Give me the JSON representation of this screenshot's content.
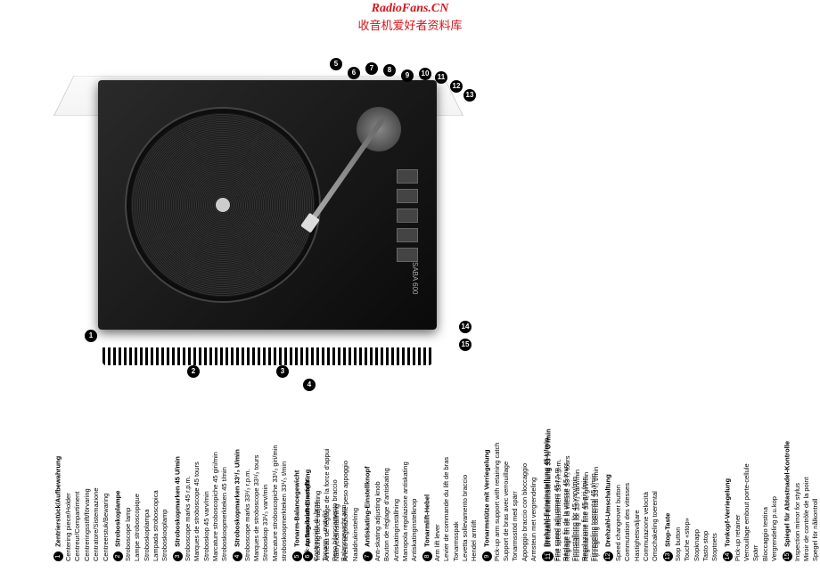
{
  "watermark": {
    "url": "RadioFans.CN",
    "cn": "收音机爱好者资料库"
  },
  "turntable": {
    "brand": "SABA 600",
    "drive": "Direct Drive"
  },
  "entries": [
    {
      "num": "1",
      "title": "Zentrierstück/Aufbewahrung",
      "lines": [
        "Centering piece/Holder",
        "Centreur/Compartiment",
        "Centreringsstift/förvaring",
        "Centratore/Sistemazione",
        "Centreerstuk/Bewaring"
      ]
    },
    {
      "num": "2",
      "title": "Stroboskoplampe",
      "lines": [
        "Stroboscope lamp",
        "Lampe stroboscopique",
        "Stroboskoplampa",
        "Lampada stroboscopica",
        "Stroboskooplamp"
      ]
    },
    {
      "num": "3",
      "title": "Stroboskopmarken 45 U/min",
      "lines": [
        "Stroboscope marks 45 r.p.m.",
        "Marques de stroboscope 45 tours",
        "Stroboskop 45 varv/min",
        "Marcature stroboscopiche 45 giri/min",
        "Stroboskoopmerkteken 45 t/min"
      ]
    },
    {
      "num": "4",
      "title": "Stroboskopmarken 33¹/₃ U/min",
      "lines": [
        "Stroboscope marks 33¹/₃ r.p.m.",
        "Marques de stroboscope 33¹/₃ tours",
        "Stroboskop 33¹/₃ varv/min",
        "Marcature stroboscopiche 33¹/₃ giri/min",
        "stroboskoopmerkteken 33¹/₃ t/min"
      ]
    },
    {
      "num": "5",
      "title": "Tonarm-Balancegewicht",
      "lines": [
        "Pick-up arm balance weight",
        "Contrepoids du bras",
        "Tonarm – motvikt",
        "Peso bilanciamento braccio",
        "Balansgewicht arm"
      ]
    },
    {
      "num": "6",
      "title": "Auflagekraft-Einstellring",
      "lines": [
        "Tracking force adjusting",
        "Anneau de réglage de la force d'appui",
        "Nåltrycksinställning",
        "Anello regolazione peso appoggio",
        "Naaldrukinstelring"
      ]
    },
    {
      "num": "7",
      "title": "Antiskating-Einstellknopf",
      "lines": [
        "Anti-skating adjusting knob",
        "Bouton de réglage d'antiskating",
        "Antiskatinginställning",
        "Manopola regolazione antiskating",
        "Antiskatinginstelknop"
      ]
    },
    {
      "num": "8",
      "title": "Tonarmlift-Hebel",
      "lines": [
        "Arm lift lever",
        "Levier de commande du lift de bras",
        "Tonarmsspak",
        "Levetta sollevamento braccio",
        "Hendel armlift"
      ]
    },
    {
      "num": "9",
      "title": "Tonarmstütze mit Verriegelung",
      "lines": [
        "Pick-up arm support with retaining catch",
        "Support de bras avec verrouillage",
        "Tonarmsstöd med spärr",
        "Appoggio braccio con bloccaggio",
        "Armsteun met vergrendeling"
      ]
    },
    {
      "num": "10",
      "title": "Drehzahl-Feineinstellung 45 U/min",
      "lines": [
        "Fine speed adjustment 45 r.p.m.",
        "Réglage fin de la vitesse 45 tours",
        "Fininstallning för 45 varv/min",
        "Regolazione fine 45 giri./min",
        "Fijnregeling toerental 45 t/min"
      ]
    },
    {
      "num": "11",
      "title": "Drehzahl-Feineinstellung 33¹/₃ U /min",
      "lines": [
        "Fine speed adjustment 33¹/₃ r.p.m.",
        "Réglage fin de la vitesse 33¹/₃ tours",
        "Fininstallning för 33¹/₃ varv/min",
        "Regolazione fine 33¹/₃ giri/min",
        "Fijnregeling toerental 33¹/₃ t/min"
      ]
    },
    {
      "num": "12",
      "title": "Drehzahl-Umschaltung",
      "lines": [
        "Speed changeover button",
        "Commutation des vitesses",
        "Hastighetsväljare",
        "Commutazione velocità",
        "Omschakeling toerental"
      ]
    },
    {
      "num": "13",
      "title": "Stop-Taste",
      "lines": [
        "Stop button",
        "Touche «stop»",
        "Stopknapp",
        "Tasto stop",
        "Stoptoets"
      ]
    },
    {
      "num": "14",
      "title": "Tonkopf-Verriegelung",
      "lines": [
        "Pick-up retainer",
        "Verrouillage embout porte-cellule",
        "Spärr",
        "Bloccaggio testina",
        "Vergrendeling p.u.kop"
      ]
    },
    {
      "num": "15",
      "title": "Spiegel für Abtastnadel-Kontrolle",
      "lines": [
        "Inspection mirror for stylus",
        "Miroir de contrôle de la point",
        "Spegel för nålkontroll",
        "Specchio per controllo puntina",
        "Spiegel voor naaldkontrole"
      ]
    }
  ]
}
